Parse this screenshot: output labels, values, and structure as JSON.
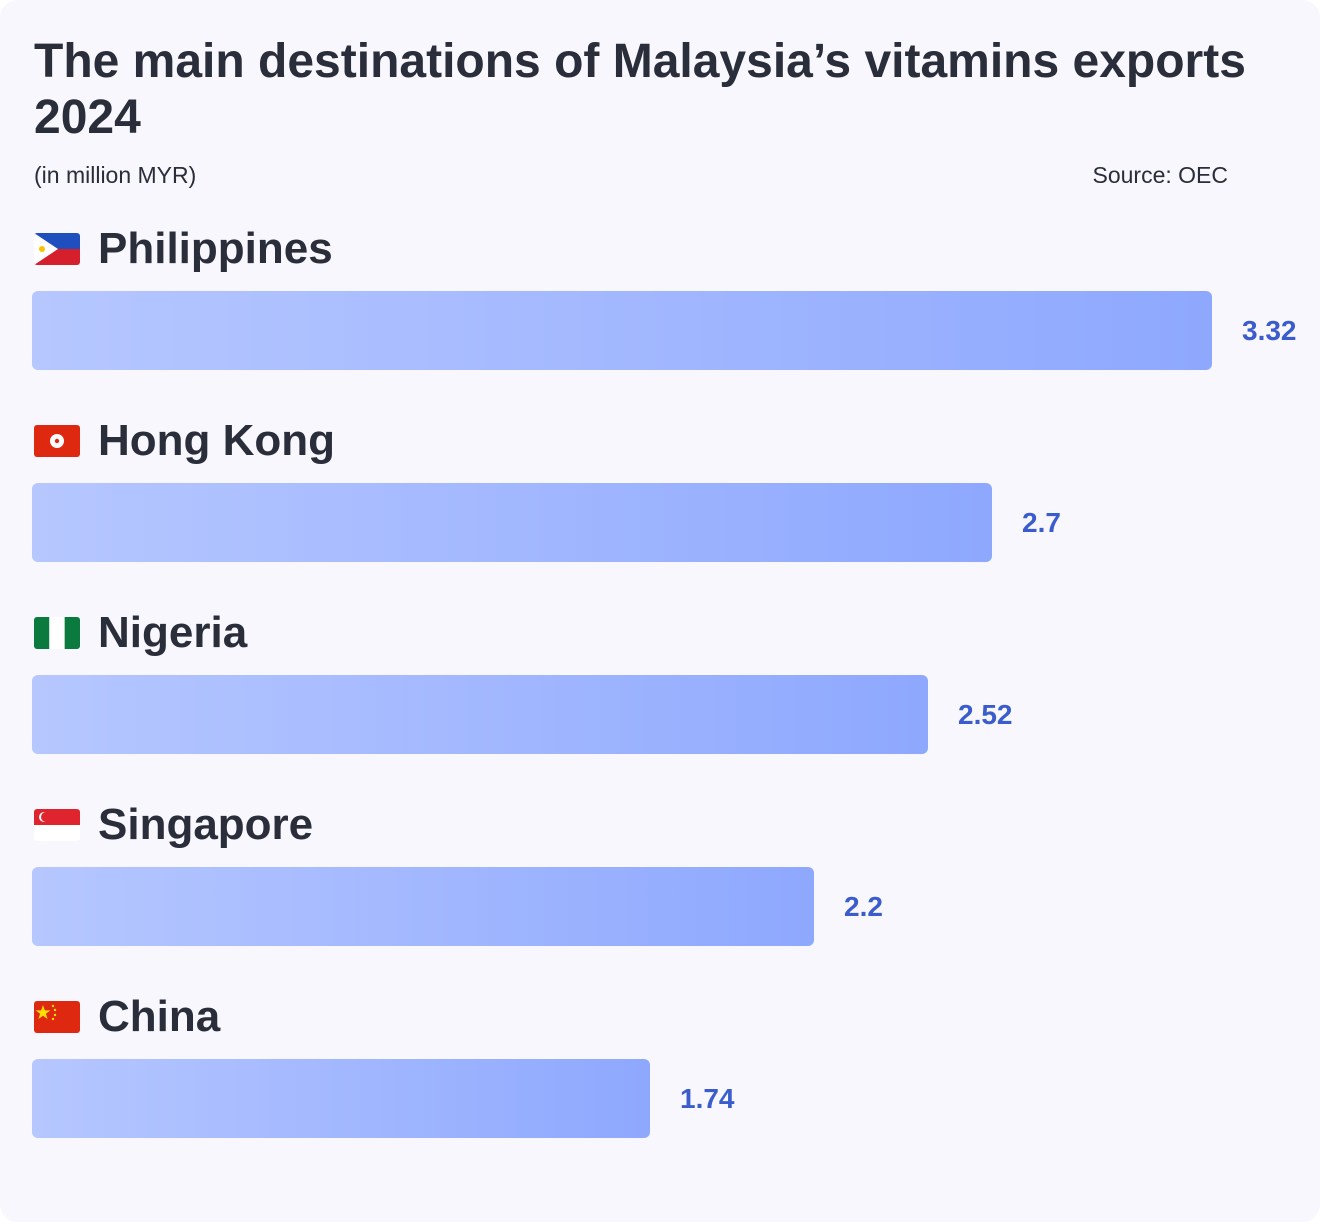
{
  "header": {
    "title": "The main destinations of Malaysia’s vitamins exports 2024",
    "subtitle": "(in million MYR)",
    "source": "Source: OEC"
  },
  "chart_data": {
    "type": "bar",
    "orientation": "horizontal",
    "title": "The main destinations of Malaysia’s vitamins exports 2024",
    "subtitle": "(in million MYR)",
    "categories": [
      "Philippines",
      "Hong Kong",
      "Nigeria",
      "Singapore",
      "China"
    ],
    "values": [
      3.32,
      2.7,
      2.52,
      2.2,
      1.74
    ],
    "value_labels": [
      "3.32",
      "2.7",
      "2.52",
      "2.2",
      "1.74"
    ],
    "flags": [
      "philippines-flag-icon",
      "hong-kong-flag-icon",
      "nigeria-flag-icon",
      "singapore-flag-icon",
      "china-flag-icon"
    ],
    "xlim": [
      0,
      3.32
    ],
    "grid": false,
    "bar_gradient": [
      "#b6c7ff",
      "#8ea8fe"
    ],
    "value_color": "#3b5ccc"
  }
}
